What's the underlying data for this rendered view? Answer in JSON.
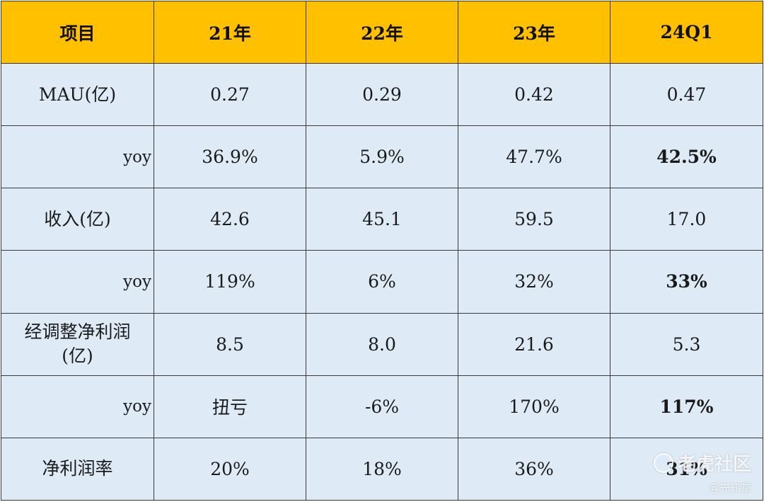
{
  "table": {
    "headers": [
      "项目",
      "21年",
      "22年",
      "23年",
      "24Q1"
    ],
    "rows": [
      {
        "label": "MAU(亿)",
        "values": [
          "0.27",
          "0.29",
          "0.42",
          "0.47"
        ]
      },
      {
        "label": "yoy",
        "values": [
          "36.9%",
          "5.9%",
          "47.7%",
          "42.5%"
        ]
      },
      {
        "label": "收入(亿)",
        "values": [
          "42.6",
          "45.1",
          "59.5",
          "17.0"
        ]
      },
      {
        "label": "yoy",
        "values": [
          "119%",
          "6%",
          "32%",
          "33%"
        ]
      },
      {
        "label_line1": "经调整净利润",
        "label_line2": "(亿)",
        "values": [
          "8.5",
          "8.0",
          "21.6",
          "5.3"
        ]
      },
      {
        "label": "yoy",
        "values": [
          "扭亏",
          "-6%",
          "170%",
          "117%"
        ]
      },
      {
        "label": "净利润率",
        "values": [
          "20%",
          "18%",
          "36%",
          "31%"
        ]
      }
    ]
  },
  "watermark": {
    "main": "老虎社区",
    "sub": "@先知堂",
    "logo_icon": "tiger-community-logo-icon"
  },
  "colors": {
    "header_bg": "#ffc000",
    "cell_bg": "#deebf7",
    "border": "#3a3a3a"
  }
}
